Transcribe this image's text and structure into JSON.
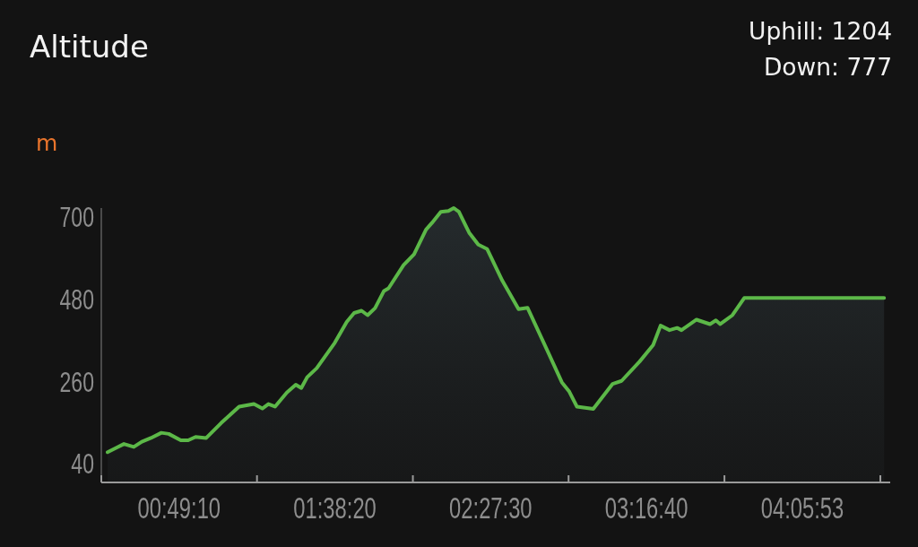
{
  "chart_data": {
    "type": "area",
    "title": "Altitude",
    "ylabel": "m",
    "annotations": [
      "Uphill: 1204",
      "Down: 777"
    ],
    "x": [
      0.443,
      0.49,
      0.529,
      0.581,
      0.623,
      0.671,
      0.726,
      0.765,
      0.828,
      0.867,
      0.906,
      0.962,
      1.04,
      1.135,
      1.213,
      1.257,
      1.289,
      1.324,
      1.386,
      1.433,
      1.462,
      1.493,
      1.543,
      1.638,
      1.701,
      1.74,
      1.779,
      1.811,
      1.85,
      1.897,
      1.921,
      2.0,
      2.055,
      2.118,
      2.149,
      2.196,
      2.236,
      2.264,
      2.291,
      2.345,
      2.393,
      2.44,
      2.519,
      2.605,
      2.652,
      2.754,
      2.833,
      2.872,
      2.912,
      2.998,
      3.1,
      3.147,
      3.242,
      3.313,
      3.352,
      3.399,
      3.439,
      3.462,
      3.541,
      3.612,
      3.643,
      3.666,
      3.73,
      3.792,
      4.528
    ],
    "series": [
      {
        "color": "#5cb848",
        "values": [
          71,
          83,
          93,
          85,
          99,
          109,
          123,
          120,
          103,
          103,
          112,
          109,
          149,
          193,
          200,
          188,
          200,
          193,
          231,
          252,
          243,
          272,
          296,
          364,
          420,
          444,
          450,
          438,
          457,
          503,
          510,
          572,
          601,
          667,
          685,
          715,
          717,
          725,
          715,
          659,
          627,
          615,
          531,
          454,
          458,
          346,
          258,
          233,
          193,
          187,
          254,
          262,
          314,
          358,
          410,
          398,
          404,
          398,
          426,
          414,
          424,
          414,
          438,
          484,
          484
        ]
      }
    ],
    "xlim": [
      0.41,
      4.56
    ],
    "xticks": [
      {
        "value": 0.41,
        "label": null
      },
      {
        "value": 0.81944,
        "label": "00:49:10"
      },
      {
        "value": 1.229,
        "label": null
      },
      {
        "value": 1.63889,
        "label": "01:38:20"
      },
      {
        "value": 2.049,
        "label": null
      },
      {
        "value": 2.45833,
        "label": "02:27:30"
      },
      {
        "value": 2.868,
        "label": null
      },
      {
        "value": 3.27778,
        "label": "03:16:40"
      },
      {
        "value": 3.688,
        "label": null
      },
      {
        "value": 4.09806,
        "label": "04:05:53"
      },
      {
        "value": 4.508,
        "label": null
      }
    ],
    "ylim": [
      -10,
      725
    ],
    "yticks": [
      40,
      260,
      480,
      700
    ]
  }
}
